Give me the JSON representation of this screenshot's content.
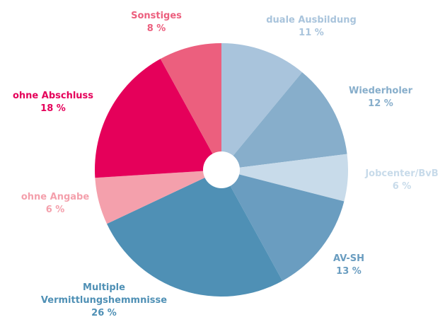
{
  "chart_data": {
    "type": "pie",
    "categories": [
      "duale Ausbildung",
      "Wiederholer",
      "Jobcenter/BvB",
      "AV-SH",
      "Multiple Vermittlungshemmnisse",
      "ohne Angabe",
      "ohne Abschluss",
      "Sonstiges"
    ],
    "values": [
      11,
      12,
      6,
      13,
      26,
      6,
      18,
      8
    ],
    "value_labels": [
      "11 %",
      "12 %",
      "6 %",
      "13 %",
      "26 %",
      "6 %",
      "18 %",
      "8 %"
    ],
    "colors": [
      "#a9c4dc",
      "#87aecb",
      "#c8dbea",
      "#6a9dc0",
      "#4f90b5",
      "#f4a0ac",
      "#e5005a",
      "#ec5f7e"
    ]
  }
}
